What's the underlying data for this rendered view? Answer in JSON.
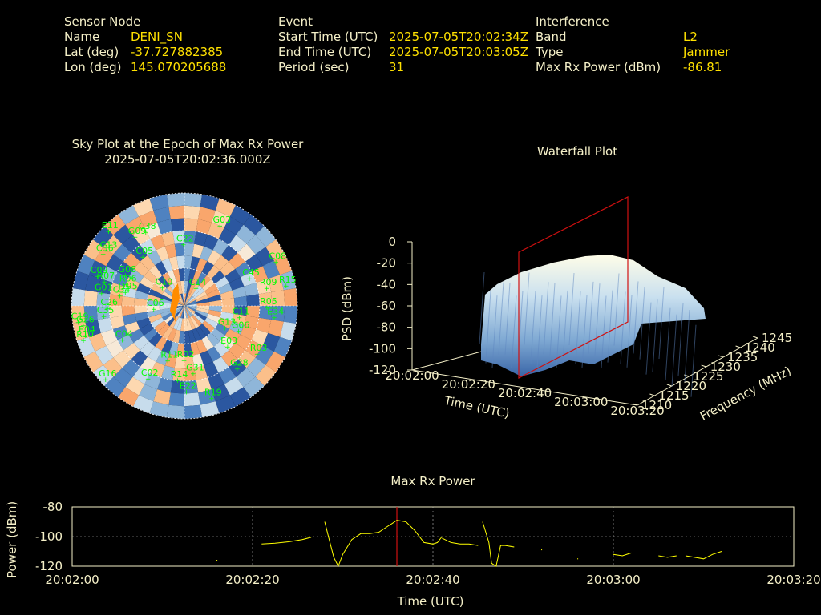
{
  "header": {
    "sensor": {
      "section_label": "Sensor Node",
      "name_label": "Name",
      "name_value": "DENI_SN",
      "lat_label": "Lat (deg)",
      "lat_value": "-37.727882385",
      "lon_label": "Lon (deg)",
      "lon_value": "145.070205688"
    },
    "event": {
      "section_label": "Event",
      "start_label": "Start Time (UTC)",
      "start_value": "2025-07-05T20:02:34Z",
      "end_label": "End Time (UTC)",
      "end_value": "2025-07-05T20:03:05Z",
      "period_label": "Period (sec)",
      "period_value": "31"
    },
    "interference": {
      "section_label": "Interference",
      "band_label": "Band",
      "band_value": "L2",
      "type_label": "Type",
      "type_value": "Jammer",
      "power_label": "Max Rx Power (dBm)",
      "power_value": "-86.81"
    }
  },
  "colors": {
    "background": "#000000",
    "label_text": "#f5f0c8",
    "value_text": "#ffe100",
    "sat_label": "#00ff00",
    "trace": "#ffff00",
    "marker": "#d01010"
  },
  "chart_data": [
    {
      "type": "polar-heatmap",
      "title": "Sky Plot at the Epoch of Max Rx Power",
      "subtitle": "2025-07-05T20:02:36.000Z",
      "satellites": [
        "C22",
        "C09",
        "G09",
        "R11",
        "J195",
        "E34",
        "C26",
        "G01",
        "G16",
        "C08",
        "C05",
        "R10",
        "E04",
        "E22",
        "G26",
        "R06",
        "C38",
        "C45",
        "G03",
        "C34",
        "G08",
        "R07",
        "G31",
        "R09",
        "C04",
        "R05",
        "C13",
        "R15",
        "G06",
        "C19",
        "C35",
        "C14",
        "E03",
        "G28",
        "G13",
        "R14",
        "C06",
        "C11",
        "R02",
        "C02",
        "E11",
        "R03",
        "C10",
        "C36",
        "R19"
      ]
    },
    {
      "type": "3d-surface",
      "title": "Waterfall Plot",
      "xlabel": "Time (UTC)",
      "ylabel": "Frequency (MHz)",
      "zlabel": "PSD (dBm)",
      "x_ticks": [
        "20:02:00",
        "20:02:20",
        "20:02:40",
        "20:03:00",
        "20:03:20"
      ],
      "y_ticks": [
        "1210",
        "1215",
        "1220",
        "1225",
        "1230",
        "1235",
        "1240",
        "1245"
      ],
      "z_ticks": [
        "0",
        "-20",
        "-40",
        "-60",
        "-80",
        "-100",
        "-120"
      ],
      "zlim": [
        -120,
        0
      ],
      "ylim": [
        1210,
        1245
      ],
      "marker_time": "20:02:36"
    },
    {
      "type": "line",
      "title": "Max Rx Power",
      "xlabel": "Time (UTC)",
      "ylabel": "Power (dBm)",
      "x_ticks": [
        "20:02:00",
        "20:02:20",
        "20:02:40",
        "20:03:00",
        "20:03:20"
      ],
      "y_ticks": [
        "-80",
        "-100",
        "-120"
      ],
      "xlim_sec": [
        0,
        80
      ],
      "ylim": [
        -120,
        -80
      ],
      "marker_sec": 36,
      "series": [
        {
          "x": [
            16,
            16.1
          ],
          "y": [
            -116,
            -116
          ]
        },
        {
          "x": [
            21,
            22.5,
            24,
            25.5,
            26.5
          ],
          "y": [
            -105,
            -104.5,
            -103.5,
            -102,
            -100.5
          ]
        },
        {
          "x": [
            28,
            28.5,
            29,
            29.5,
            30,
            31,
            32,
            33,
            34,
            35,
            35.5,
            36,
            37,
            38,
            39,
            40,
            40.5,
            41
          ],
          "y": [
            -90,
            -102,
            -114,
            -120,
            -112,
            -102,
            -98,
            -98,
            -97,
            -93,
            -91,
            -89,
            -90,
            -96,
            -104,
            -105,
            -104,
            -100
          ]
        },
        {
          "x": [
            41,
            42,
            43,
            44,
            45
          ],
          "y": [
            -101,
            -104,
            -105,
            -105,
            -106
          ]
        },
        {
          "x": [
            45.5,
            46.2,
            46.5,
            47,
            47.5,
            48,
            49
          ],
          "y": [
            -90,
            -104,
            -118,
            -120,
            -106,
            -106,
            -107
          ]
        },
        {
          "x": [
            52,
            52.1
          ],
          "y": [
            -109,
            -109
          ]
        },
        {
          "x": [
            56,
            56.1
          ],
          "y": [
            -115,
            -115
          ]
        },
        {
          "x": [
            60,
            61,
            62
          ],
          "y": [
            -112,
            -113,
            -111
          ]
        },
        {
          "x": [
            65,
            66,
            67
          ],
          "y": [
            -113,
            -114,
            -113
          ]
        },
        {
          "x": [
            68,
            69,
            70,
            71,
            72
          ],
          "y": [
            -113,
            -114,
            -115,
            -112,
            -110
          ]
        }
      ]
    }
  ]
}
